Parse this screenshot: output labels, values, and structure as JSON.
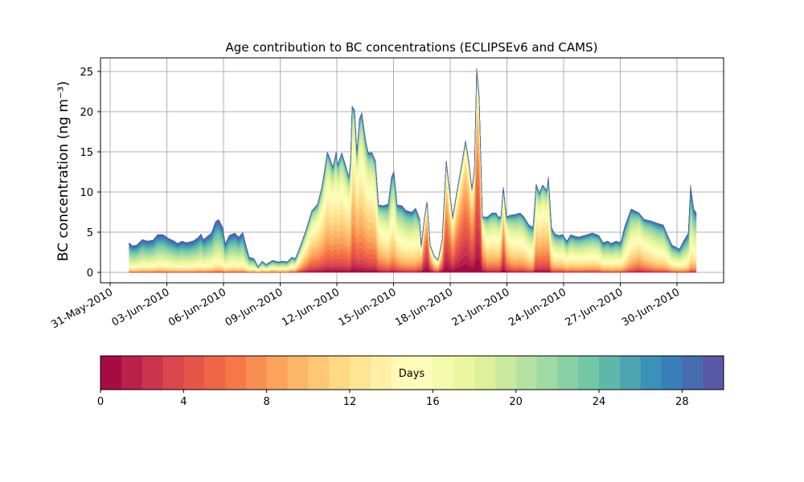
{
  "chart_data": {
    "type": "area",
    "stacked": true,
    "title": "Age contribution to BC concentrations (ECLIPSEv6 and CAMS)",
    "xlabel": "",
    "ylabel": "BC concentration (ng m⁻³)",
    "x_units": "days since 01-Jun-2010",
    "xlim": [
      -1.5,
      31.5
    ],
    "ylim": [
      -1.3,
      26.7
    ],
    "yticks": [
      0,
      5,
      10,
      15,
      20,
      25
    ],
    "xticks": [
      -1,
      2,
      5,
      8,
      11,
      14,
      17,
      20,
      23,
      26,
      29
    ],
    "xtick_labels": [
      "31-May-2010",
      "03-Jun-2010",
      "06-Jun-2010",
      "09-Jun-2010",
      "12-Jun-2010",
      "15-Jun-2010",
      "18-Jun-2010",
      "21-Jun-2010",
      "24-Jun-2010",
      "27-Jun-2010",
      "30-Jun-2010"
    ],
    "grid": true,
    "x": [
      0.0,
      0.19,
      0.4,
      0.7,
      0.96,
      1.26,
      1.51,
      1.81,
      2.11,
      2.4,
      2.57,
      2.79,
      3.04,
      3.38,
      3.64,
      3.81,
      3.94,
      4.15,
      4.36,
      4.57,
      4.74,
      4.96,
      5.09,
      5.3,
      5.6,
      5.81,
      6.02,
      6.19,
      6.36,
      6.62,
      6.83,
      7.04,
      7.26,
      7.6,
      7.89,
      8.15,
      8.36,
      8.62,
      8.79,
      9.0,
      9.34,
      9.68,
      9.98,
      10.19,
      10.36,
      10.49,
      10.62,
      10.79,
      10.96,
      11.04,
      11.26,
      11.43,
      11.64,
      11.72,
      11.81,
      11.94,
      12.06,
      12.19,
      12.32,
      12.53,
      12.66,
      12.87,
      13.04,
      13.21,
      13.47,
      13.72,
      13.89,
      14.02,
      14.19,
      14.45,
      14.66,
      14.96,
      15.17,
      15.38,
      15.47,
      15.64,
      15.77,
      15.94,
      16.15,
      16.36,
      16.57,
      16.79,
      16.91,
      17.13,
      17.34,
      17.64,
      17.81,
      17.98,
      18.15,
      18.28,
      18.4,
      18.53,
      18.7,
      18.96,
      19.21,
      19.43,
      19.55,
      19.68,
      19.81,
      19.98,
      20.15,
      20.4,
      20.7,
      20.91,
      21.17,
      21.38,
      21.55,
      21.72,
      21.89,
      22.11,
      22.19,
      22.36,
      22.53,
      22.74,
      22.96,
      23.17,
      23.38,
      23.6,
      23.81,
      24.53,
      24.87,
      25.09,
      25.34,
      25.51,
      25.77,
      26.02,
      26.23,
      26.57,
      27.0,
      27.26,
      27.64,
      27.98,
      28.28,
      28.49,
      28.74,
      29.13,
      29.34,
      29.6,
      29.72,
      29.89,
      30.02
    ],
    "total": [
      3.7,
      3.3,
      3.4,
      4.1,
      3.9,
      4.0,
      4.7,
      4.7,
      4.2,
      3.9,
      3.6,
      3.9,
      3.7,
      3.9,
      4.3,
      4.8,
      4.1,
      4.5,
      4.9,
      6.3,
      6.6,
      5.6,
      3.6,
      4.6,
      4.9,
      4.4,
      5.0,
      3.4,
      1.9,
      1.7,
      0.7,
      1.4,
      1.0,
      1.5,
      1.3,
      1.4,
      1.3,
      1.9,
      1.7,
      2.9,
      5.1,
      7.7,
      8.5,
      10.5,
      12.9,
      15.0,
      14.3,
      13.1,
      15.0,
      13.4,
      14.9,
      13.6,
      11.9,
      13.7,
      20.7,
      20.2,
      14.9,
      19.1,
      19.9,
      16.3,
      14.9,
      14.9,
      13.9,
      8.4,
      8.3,
      8.5,
      11.9,
      12.6,
      8.4,
      8.3,
      7.7,
      7.5,
      8.0,
      6.7,
      3.3,
      6.9,
      8.8,
      3.4,
      2.1,
      1.6,
      4.1,
      13.9,
      11.4,
      6.9,
      9.9,
      13.9,
      16.4,
      13.9,
      10.4,
      12.9,
      25.4,
      21.9,
      6.9,
      6.9,
      7.4,
      7.4,
      6.9,
      6.9,
      10.6,
      6.9,
      7.1,
      7.2,
      7.4,
      6.9,
      5.9,
      5.6,
      11.0,
      9.9,
      10.9,
      10.2,
      11.9,
      5.6,
      4.8,
      4.6,
      4.7,
      3.9,
      4.7,
      4.5,
      4.4,
      4.9,
      4.6,
      3.7,
      3.9,
      3.6,
      3.9,
      3.7,
      5.7,
      7.9,
      7.4,
      6.6,
      6.4,
      6.1,
      5.9,
      4.7,
      3.4,
      2.9,
      3.9,
      4.9,
      10.9,
      7.9,
      7.4
    ],
    "mean_age_days": [
      21,
      21,
      21,
      21,
      21,
      21,
      21,
      21,
      21,
      21,
      21,
      21,
      21,
      21,
      21,
      21,
      21,
      21,
      21,
      21,
      21,
      21,
      21,
      21,
      21,
      21,
      21,
      21,
      20,
      19,
      18,
      18,
      18,
      18,
      18,
      18,
      18,
      17,
      17,
      15,
      13,
      12,
      12,
      12,
      12,
      12,
      12,
      12,
      12,
      12,
      12,
      12,
      12,
      12,
      11,
      11,
      11,
      12,
      12,
      12,
      12,
      12,
      12,
      13,
      14,
      15,
      15,
      15,
      15,
      16,
      16,
      16,
      16,
      14,
      10,
      6,
      4,
      8,
      12,
      12,
      9,
      5,
      6,
      8,
      6,
      5,
      5,
      5,
      6,
      5,
      4,
      4,
      10,
      14,
      14,
      14,
      14,
      12,
      7,
      12,
      14,
      15,
      15,
      15,
      16,
      16,
      12,
      12,
      12,
      12,
      12,
      16,
      16,
      16,
      16,
      17,
      17,
      17,
      17,
      17,
      17,
      18,
      18,
      18,
      18,
      18,
      18,
      16,
      14,
      15,
      16,
      17,
      17,
      17,
      18,
      18,
      19,
      19,
      19,
      18,
      18
    ],
    "colorbar": {
      "label": "Days",
      "range": [
        0,
        30
      ],
      "n_bins": 30,
      "ticks": [
        0,
        4,
        8,
        12,
        16,
        20,
        24,
        28
      ],
      "tick_labels": [
        "0",
        "4",
        "8",
        "12",
        "16",
        "20",
        "24",
        "28"
      ],
      "colormap": [
        "#9e0142",
        "#d53e4f",
        "#f46d43",
        "#fdae61",
        "#fee08b",
        "#ffffbf",
        "#e6f598",
        "#abdda4",
        "#66c2a5",
        "#3288bd",
        "#5e4fa2"
      ]
    }
  }
}
